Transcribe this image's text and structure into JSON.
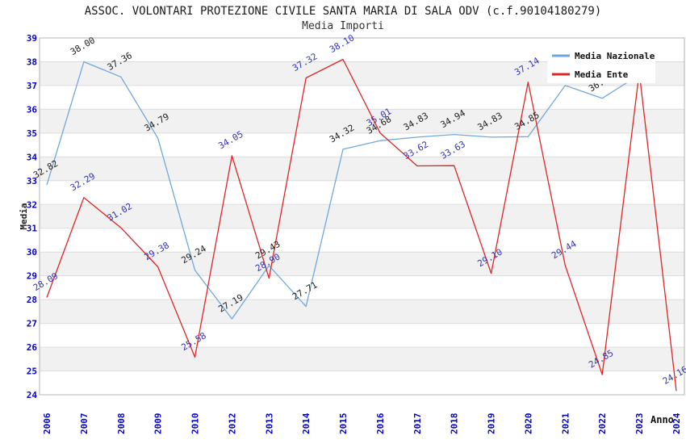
{
  "title": "ASSOC. VOLONTARI PROTEZIONE CIVILE SANTA MARIA DI SALA ODV (c.f.90104180279)",
  "subtitle": "Media Importi",
  "axes": {
    "y_label": "Media",
    "x_label": "Anno",
    "y_ticks": [
      39,
      38,
      37,
      36,
      35,
      34,
      33,
      32,
      31,
      30,
      29,
      28,
      27,
      26,
      25,
      24
    ],
    "x_ticks": [
      "2006",
      "2007",
      "2008",
      "2009",
      "2010",
      "2012",
      "2013",
      "2014",
      "2015",
      "2016",
      "2017",
      "2018",
      "2019",
      "2020",
      "2021",
      "2022",
      "2023",
      "2024"
    ],
    "tick_color": "#0000cc"
  },
  "legend": {
    "position": "top-right",
    "entries": [
      {
        "label": "Media Nazionale",
        "color": "#6fa8dc"
      },
      {
        "label": "Media Ente",
        "color": "#e02424"
      }
    ]
  },
  "colors": {
    "grid_line": "#dcdcdc",
    "band_fill": "#f1f1f1",
    "plot_border": "#b3b3b3",
    "national_line": "#6fa8dc",
    "ente_line": "#e02424",
    "national_label": "#222222",
    "ente_label": "#3434b8"
  },
  "chart_data": {
    "type": "line",
    "title": "Media Importi",
    "xlabel": "Anno",
    "ylabel": "Media",
    "ylim": [
      24,
      39
    ],
    "grid": "horizontal gridlines with alternating gray bands",
    "legend_position": "top-right",
    "categories": [
      "2006",
      "2007",
      "2008",
      "2009",
      "2010",
      "2012",
      "2013",
      "2014",
      "2015",
      "2016",
      "2017",
      "2018",
      "2019",
      "2020",
      "2021",
      "2022",
      "2023",
      "2024"
    ],
    "series": [
      {
        "name": "Media Nazionale",
        "color": "#6fa8dc",
        "label_color": "#222222",
        "values": [
          32.82,
          38.0,
          37.36,
          34.79,
          29.24,
          27.19,
          29.43,
          27.71,
          34.32,
          34.68,
          34.83,
          34.94,
          34.83,
          34.85,
          37.0,
          36.46,
          37.45,
          null
        ],
        "labels": [
          "32.82",
          "38.00",
          "37.36",
          "34.79",
          "29.24",
          "27.19",
          "29.43",
          "27.71",
          "34.32",
          "34.68",
          "34.83",
          "34.94",
          "34.83",
          "34.85",
          "",
          "36.46",
          "",
          ""
        ]
      },
      {
        "name": "Media Ente",
        "color": "#e02424",
        "label_color": "#3434b8",
        "values": [
          28.09,
          32.29,
          31.02,
          29.38,
          25.58,
          34.05,
          28.9,
          37.32,
          38.1,
          35.01,
          33.62,
          33.63,
          29.1,
          37.14,
          29.44,
          24.85,
          37.55,
          24.16
        ],
        "labels": [
          "28.09",
          "32.29",
          "31.02",
          "29.38",
          "25.58",
          "34.05",
          "28.90",
          "37.32",
          "38.10",
          "35.01",
          "33.62",
          "33.63",
          "29.10",
          "37.14",
          "29.44",
          "24.85",
          "",
          "24.16"
        ]
      }
    ]
  }
}
